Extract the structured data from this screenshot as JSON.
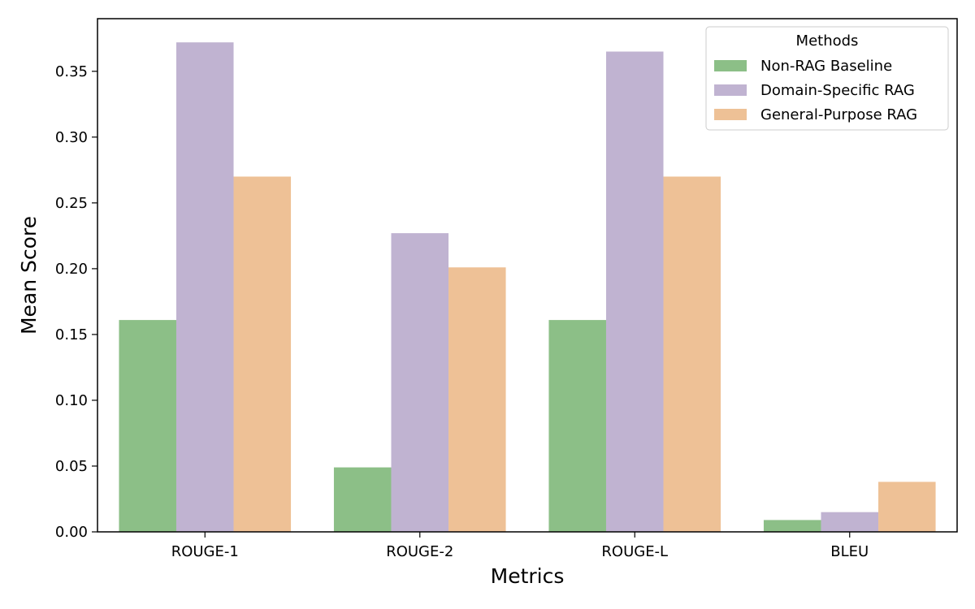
{
  "chart_data": {
    "type": "bar",
    "title": "",
    "xlabel": "Metrics",
    "ylabel": "Mean Score",
    "categories": [
      "ROUGE-1",
      "ROUGE-2",
      "ROUGE-L",
      "BLEU"
    ],
    "series": [
      {
        "name": "Non-RAG Baseline",
        "color": "#8cbf87",
        "values": [
          0.161,
          0.049,
          0.161,
          0.009
        ]
      },
      {
        "name": "Domain-Specific RAG",
        "color": "#c0b3d1",
        "values": [
          0.372,
          0.227,
          0.365,
          0.015
        ]
      },
      {
        "name": "General-Purpose RAG",
        "color": "#eec196",
        "values": [
          0.27,
          0.201,
          0.27,
          0.038
        ]
      }
    ],
    "ylim": [
      0,
      0.39
    ],
    "yticks": [
      "0.00",
      "0.05",
      "0.10",
      "0.15",
      "0.20",
      "0.25",
      "0.30",
      "0.35"
    ],
    "grid": false,
    "legend": {
      "title": "Methods",
      "position": "top-right"
    }
  }
}
